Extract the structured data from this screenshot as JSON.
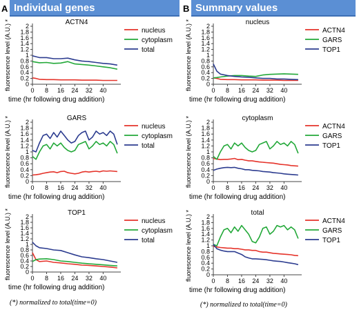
{
  "panels": [
    {
      "letter": "A",
      "header": "Individual genes"
    },
    {
      "letter": "B",
      "header": "Summary values"
    }
  ],
  "footnote": "(*) normalized to total(time=0)",
  "colors": {
    "red": "#e5332a",
    "green": "#22a838",
    "blue": "#2b3b8f",
    "header_bg": "#5b8fd4"
  },
  "chart_data": [
    {
      "type": "line",
      "title": "ACTN4",
      "xlabel": "time (hr following drug addition)",
      "ylabel": "fluorescence level (A.U.) *",
      "xlim": [
        0,
        50
      ],
      "ylim": [
        0,
        2
      ],
      "xticks": [
        "0",
        "8",
        "16",
        "24",
        "32",
        "40"
      ],
      "yticks": [
        "0",
        "0.2",
        "0.4",
        "0.6",
        "0.8",
        "1",
        "1.2",
        "1.4",
        "1.6",
        "1.8",
        "2"
      ],
      "legend_position": "right",
      "x": [
        0,
        2,
        4,
        8,
        12,
        16,
        20,
        24,
        28,
        32,
        36,
        40,
        44,
        48
      ],
      "series": [
        {
          "name": "nucleus",
          "color": "red",
          "values": [
            0.22,
            0.2,
            0.17,
            0.16,
            0.16,
            0.15,
            0.15,
            0.15,
            0.14,
            0.14,
            0.14,
            0.13,
            0.13,
            0.13
          ]
        },
        {
          "name": "cytoplasm",
          "color": "green",
          "values": [
            0.78,
            0.76,
            0.74,
            0.75,
            0.72,
            0.73,
            0.78,
            0.7,
            0.68,
            0.66,
            0.63,
            0.6,
            0.57,
            0.52
          ]
        },
        {
          "name": "total",
          "color": "blue",
          "values": [
            0.98,
            0.95,
            0.92,
            0.92,
            0.88,
            0.88,
            0.9,
            0.84,
            0.8,
            0.78,
            0.75,
            0.72,
            0.7,
            0.66
          ]
        }
      ]
    },
    {
      "type": "line",
      "title": "GARS",
      "xlabel": "time (hr following drug addition)",
      "ylabel": "fluorescence level (A.U.) *",
      "xlim": [
        0,
        50
      ],
      "ylim": [
        0,
        2
      ],
      "xticks": [
        "0",
        "8",
        "16",
        "24",
        "32",
        "40"
      ],
      "yticks": [
        "0",
        "0.2",
        "0.4",
        "0.6",
        "0.8",
        "1",
        "1.2",
        "1.4",
        "1.6",
        "1.8",
        "2"
      ],
      "legend_position": "right",
      "x": [
        0,
        2,
        4,
        6,
        8,
        10,
        12,
        14,
        16,
        18,
        20,
        22,
        24,
        26,
        28,
        30,
        32,
        34,
        36,
        38,
        40,
        42,
        44,
        46,
        48
      ],
      "series": [
        {
          "name": "nucleus",
          "color": "red",
          "values": [
            0.22,
            0.23,
            0.25,
            0.28,
            0.3,
            0.32,
            0.33,
            0.3,
            0.34,
            0.35,
            0.3,
            0.28,
            0.26,
            0.28,
            0.32,
            0.34,
            0.32,
            0.34,
            0.35,
            0.33,
            0.36,
            0.35,
            0.36,
            0.35,
            0.34
          ]
        },
        {
          "name": "cytoplasm",
          "color": "green",
          "values": [
            0.85,
            0.75,
            1.0,
            1.2,
            1.25,
            1.1,
            1.3,
            1.2,
            1.3,
            1.15,
            1.05,
            1.0,
            1.05,
            1.25,
            1.3,
            1.35,
            1.1,
            1.2,
            1.35,
            1.25,
            1.3,
            1.2,
            1.35,
            1.25,
            0.95
          ]
        },
        {
          "name": "total",
          "color": "blue",
          "values": [
            1.05,
            1.0,
            1.3,
            1.55,
            1.6,
            1.45,
            1.65,
            1.5,
            1.7,
            1.55,
            1.4,
            1.3,
            1.35,
            1.55,
            1.65,
            1.7,
            1.4,
            1.5,
            1.7,
            1.6,
            1.65,
            1.55,
            1.7,
            1.6,
            1.25
          ]
        }
      ]
    },
    {
      "type": "line",
      "title": "TOP1",
      "xlabel": "time (hr following drug addition)",
      "ylabel": "fluorescence level (A.U.) *",
      "xlim": [
        0,
        50
      ],
      "ylim": [
        0,
        2
      ],
      "xticks": [
        "0",
        "8",
        "16",
        "24",
        "32",
        "40"
      ],
      "yticks": [
        "0",
        "0.2",
        "0.4",
        "0.6",
        "0.8",
        "1",
        "1.2",
        "1.4",
        "1.6",
        "1.8",
        "2"
      ],
      "legend_position": "right",
      "x": [
        0,
        2,
        4,
        8,
        12,
        16,
        20,
        24,
        28,
        32,
        36,
        40,
        44,
        48
      ],
      "series": [
        {
          "name": "nucleus",
          "color": "red",
          "values": [
            0.7,
            0.45,
            0.38,
            0.4,
            0.35,
            0.33,
            0.3,
            0.28,
            0.25,
            0.24,
            0.22,
            0.2,
            0.18,
            0.15
          ]
        },
        {
          "name": "cytoplasm",
          "color": "green",
          "values": [
            0.38,
            0.45,
            0.47,
            0.48,
            0.45,
            0.4,
            0.38,
            0.35,
            0.32,
            0.3,
            0.28,
            0.26,
            0.24,
            0.22
          ]
        },
        {
          "name": "total",
          "color": "blue",
          "values": [
            1.08,
            0.95,
            0.88,
            0.85,
            0.8,
            0.78,
            0.7,
            0.62,
            0.55,
            0.52,
            0.48,
            0.45,
            0.4,
            0.35
          ]
        }
      ]
    },
    {
      "type": "line",
      "title": "nucleus",
      "xlabel": "time (hr following drug addition)",
      "ylabel": "fluorescence level (A.U.) *",
      "xlim": [
        0,
        50
      ],
      "ylim": [
        0,
        2
      ],
      "xticks": [
        "0",
        "8",
        "16",
        "24",
        "32",
        "40"
      ],
      "yticks": [
        "0",
        "0.2",
        "0.4",
        "0.6",
        "0.8",
        "1",
        "1.2",
        "1.4",
        "1.6",
        "1.8",
        "2"
      ],
      "legend_position": "right",
      "x": [
        0,
        2,
        4,
        8,
        12,
        16,
        20,
        24,
        28,
        32,
        36,
        40,
        44,
        48
      ],
      "series": [
        {
          "name": "ACTN4",
          "color": "red",
          "values": [
            0.22,
            0.2,
            0.17,
            0.16,
            0.16,
            0.15,
            0.15,
            0.15,
            0.14,
            0.14,
            0.14,
            0.13,
            0.13,
            0.13
          ]
        },
        {
          "name": "GARS",
          "color": "green",
          "values": [
            0.22,
            0.23,
            0.25,
            0.28,
            0.3,
            0.3,
            0.28,
            0.27,
            0.32,
            0.34,
            0.35,
            0.36,
            0.35,
            0.34
          ]
        },
        {
          "name": "TOP1",
          "color": "blue",
          "values": [
            0.7,
            0.45,
            0.35,
            0.3,
            0.27,
            0.25,
            0.24,
            0.22,
            0.2,
            0.2,
            0.18,
            0.18,
            0.17,
            0.16
          ]
        }
      ]
    },
    {
      "type": "line",
      "title": "cytoplasm",
      "xlabel": "time (hr following drug addition)",
      "ylabel": "fluorescence level (A.U.) *",
      "xlim": [
        0,
        50
      ],
      "ylim": [
        0,
        2
      ],
      "xticks": [
        "0",
        "8",
        "16",
        "24",
        "32",
        "40"
      ],
      "yticks": [
        "0",
        "0.2",
        "0.4",
        "0.6",
        "0.8",
        "1",
        "1.2",
        "1.4",
        "1.6",
        "1.8",
        "2"
      ],
      "legend_position": "right",
      "x": [
        0,
        2,
        4,
        6,
        8,
        10,
        12,
        14,
        16,
        18,
        20,
        22,
        24,
        26,
        28,
        30,
        32,
        34,
        36,
        38,
        40,
        42,
        44,
        46,
        48
      ],
      "series": [
        {
          "name": "ACTN4",
          "color": "red",
          "values": [
            0.78,
            0.76,
            0.74,
            0.75,
            0.75,
            0.76,
            0.78,
            0.74,
            0.75,
            0.72,
            0.7,
            0.7,
            0.68,
            0.66,
            0.65,
            0.64,
            0.63,
            0.62,
            0.6,
            0.58,
            0.57,
            0.56,
            0.54,
            0.53,
            0.52
          ]
        },
        {
          "name": "GARS",
          "color": "green",
          "values": [
            0.85,
            0.75,
            1.0,
            1.2,
            1.25,
            1.1,
            1.3,
            1.2,
            1.3,
            1.15,
            1.05,
            1.0,
            1.05,
            1.25,
            1.3,
            1.35,
            1.1,
            1.2,
            1.35,
            1.25,
            1.3,
            1.2,
            1.35,
            1.25,
            0.95
          ]
        },
        {
          "name": "TOP1",
          "color": "blue",
          "values": [
            0.38,
            0.42,
            0.45,
            0.47,
            0.48,
            0.47,
            0.48,
            0.45,
            0.43,
            0.4,
            0.4,
            0.38,
            0.37,
            0.36,
            0.34,
            0.33,
            0.32,
            0.3,
            0.29,
            0.28,
            0.26,
            0.25,
            0.24,
            0.23,
            0.22
          ]
        }
      ]
    },
    {
      "type": "line",
      "title": "total",
      "xlabel": "time (hr following drug addition)",
      "ylabel": "fluorescence level (A.U.) *",
      "xlim": [
        0,
        50
      ],
      "ylim": [
        0,
        2
      ],
      "xticks": [
        "0",
        "8",
        "16",
        "24",
        "32",
        "40"
      ],
      "yticks": [
        "0",
        "0.2",
        "0.4",
        "0.6",
        "0.8",
        "1",
        "1.2",
        "1.4",
        "1.6",
        "1.8",
        "2"
      ],
      "legend_position": "right",
      "x": [
        0,
        2,
        4,
        6,
        8,
        10,
        12,
        14,
        16,
        18,
        20,
        22,
        24,
        26,
        28,
        30,
        32,
        34,
        36,
        38,
        40,
        42,
        44,
        46,
        48
      ],
      "series": [
        {
          "name": "ACTN4",
          "color": "red",
          "values": [
            0.98,
            0.96,
            0.94,
            0.93,
            0.92,
            0.92,
            0.9,
            0.9,
            0.88,
            0.86,
            0.86,
            0.84,
            0.84,
            0.8,
            0.78,
            0.78,
            0.76,
            0.74,
            0.73,
            0.72,
            0.71,
            0.7,
            0.69,
            0.67,
            0.66
          ]
        },
        {
          "name": "GARS",
          "color": "green",
          "values": [
            1.05,
            1.0,
            1.3,
            1.55,
            1.6,
            1.45,
            1.65,
            1.5,
            1.7,
            1.55,
            1.4,
            1.15,
            1.1,
            1.3,
            1.6,
            1.65,
            1.4,
            1.5,
            1.7,
            1.65,
            1.7,
            1.55,
            1.65,
            1.55,
            1.25
          ]
        },
        {
          "name": "TOP1",
          "color": "blue",
          "values": [
            1.05,
            0.9,
            0.85,
            0.82,
            0.8,
            0.8,
            0.8,
            0.75,
            0.7,
            0.62,
            0.58,
            0.55,
            0.55,
            0.54,
            0.53,
            0.52,
            0.5,
            0.48,
            0.47,
            0.46,
            0.44,
            0.42,
            0.4,
            0.38,
            0.35
          ]
        }
      ]
    }
  ]
}
